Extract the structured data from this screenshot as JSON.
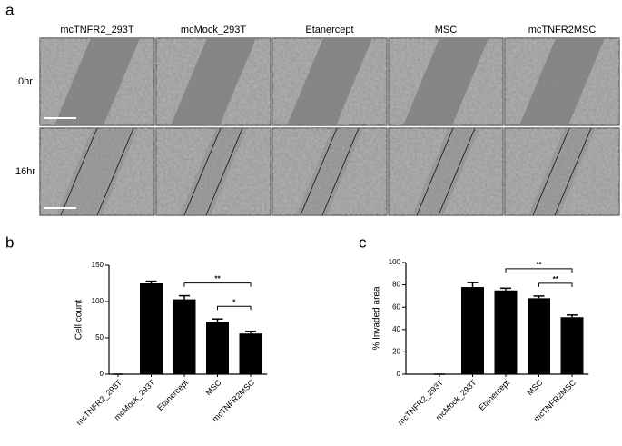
{
  "panel_labels": [
    "a",
    "b",
    "c"
  ],
  "images": {
    "columns": [
      "mcTNFR2_293T",
      "mcMock_293T",
      "Etanercept",
      "MSC",
      "mcTNFR2MSC"
    ],
    "rows": [
      "0hr",
      "16hr"
    ]
  },
  "chart_data": [
    {
      "type": "bar",
      "y_label": "Cell count",
      "categories": [
        "mcTNFR2_293T",
        "mcMock_293T",
        "Etanercept",
        "MSC",
        "mcTNFR2MSC"
      ],
      "values": [
        0,
        125,
        103,
        72,
        56
      ],
      "errors": [
        0,
        3,
        5,
        4,
        3
      ],
      "color": "#000000",
      "ylim": [
        0,
        150
      ],
      "yticks": [
        0,
        50,
        100,
        150
      ],
      "significance": [
        {
          "from": 2,
          "to": 4,
          "label": "**"
        },
        {
          "from": 3,
          "to": 4,
          "label": "*"
        }
      ]
    },
    {
      "type": "bar",
      "y_label": "% Invaded area",
      "categories": [
        "mcTNFR2_293T",
        "mcMock_293T",
        "Etanercept",
        "MSC",
        "mcTNFR2MSC"
      ],
      "values": [
        0,
        78,
        75,
        68,
        51
      ],
      "errors": [
        0,
        4,
        2,
        2,
        2
      ],
      "color": "#000000",
      "ylim": [
        0,
        100
      ],
      "yticks": [
        0,
        20,
        40,
        60,
        80,
        100
      ],
      "significance": [
        {
          "from": 2,
          "to": 4,
          "label": "**"
        },
        {
          "from": 3,
          "to": 4,
          "label": "**"
        }
      ]
    }
  ]
}
